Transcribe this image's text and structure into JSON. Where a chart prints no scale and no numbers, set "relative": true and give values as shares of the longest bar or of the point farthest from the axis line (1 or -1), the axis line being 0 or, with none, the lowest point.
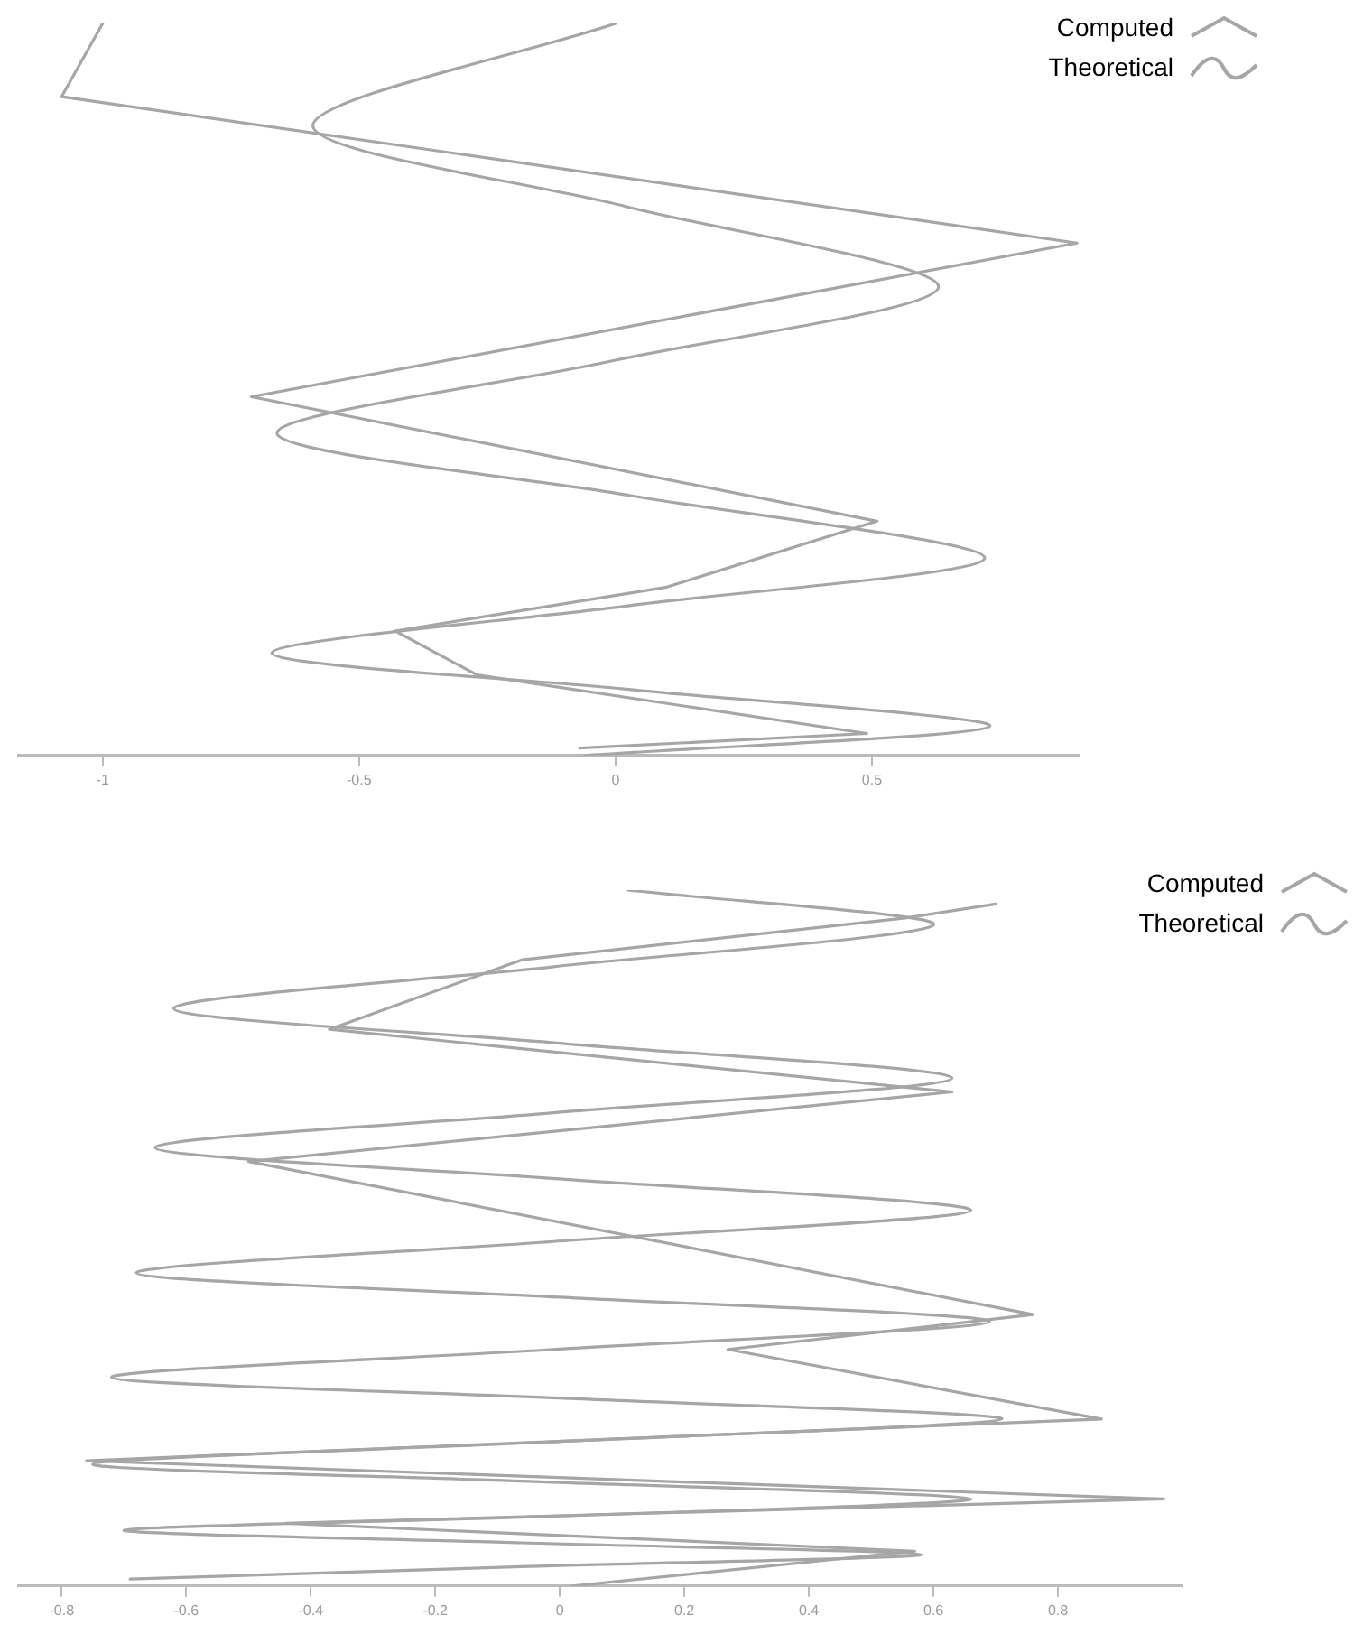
{
  "chart_data": [
    {
      "type": "line",
      "relative": true,
      "tick_labels": "x",
      "grid": false,
      "legend": "top right",
      "marker": "none",
      "line_style": "solid",
      "xlim": [
        -1.165,
        0.905
      ],
      "xticks": [
        -1,
        -0.5,
        0,
        0.5
      ],
      "series": [
        {
          "name": "Computed",
          "color": "#a6a6a6",
          "x": [
            -1.0,
            -1.08,
            0.9,
            -0.71,
            0.51,
            0.1,
            -0.43,
            -0.27,
            0.49,
            -0.07
          ],
          "values": [
            1.0,
            0.9,
            0.7,
            0.49,
            0.32,
            0.23,
            0.17,
            0.11,
            0.03,
            0.01
          ]
        },
        {
          "name": "Theoretical",
          "color": "#a6a6a6",
          "x": [
            0.0,
            -0.59,
            0.02,
            0.63,
            0.0,
            -0.66,
            0.03,
            0.72,
            0.03,
            -0.67,
            0.03,
            0.73,
            -0.06
          ],
          "values": [
            1.0,
            0.86,
            0.75,
            0.64,
            0.54,
            0.44,
            0.355,
            0.27,
            0.205,
            0.14,
            0.09,
            0.04,
            0.0
          ]
        }
      ]
    },
    {
      "type": "line",
      "relative": true,
      "tick_labels": "x",
      "grid": false,
      "legend": "top right",
      "marker": "none",
      "line_style": "solid",
      "xlim": [
        -0.87,
        1.0
      ],
      "xticks": [
        -0.8,
        -0.6,
        -0.4,
        -0.2,
        0,
        0.2,
        0.4,
        0.6,
        0.8
      ],
      "series": [
        {
          "name": "Computed",
          "color": "#a6a6a6",
          "x": [
            0.7,
            0.555,
            -0.06,
            -0.37,
            0.63,
            -0.5,
            0.76,
            0.27,
            0.87,
            -0.76,
            0.97,
            -0.44,
            0.57,
            0.02
          ],
          "values": [
            0.98,
            0.96,
            0.9,
            0.8,
            0.71,
            0.61,
            0.39,
            0.34,
            0.24,
            0.18,
            0.125,
            0.09,
            0.05,
            0.0
          ]
        },
        {
          "name": "Theoretical",
          "color": "#a6a6a6",
          "x": [
            0.11,
            0.6,
            -0.01,
            -0.62,
            0.0,
            0.63,
            -0.01,
            -0.65,
            0.0,
            0.66,
            -0.01,
            -0.68,
            0.0,
            0.69,
            -0.01,
            -0.72,
            0.0,
            0.71,
            -0.02,
            -0.75,
            -0.04,
            0.66,
            -0.02,
            -0.7,
            -0.06,
            0.58,
            -0.05,
            -0.69
          ],
          "values": [
            1.0,
            0.95,
            0.89,
            0.83,
            0.78,
            0.73,
            0.68,
            0.63,
            0.585,
            0.54,
            0.495,
            0.45,
            0.415,
            0.38,
            0.34,
            0.3,
            0.27,
            0.24,
            0.207,
            0.175,
            0.15,
            0.125,
            0.1,
            0.08,
            0.062,
            0.045,
            0.028,
            0.01
          ]
        }
      ]
    }
  ]
}
